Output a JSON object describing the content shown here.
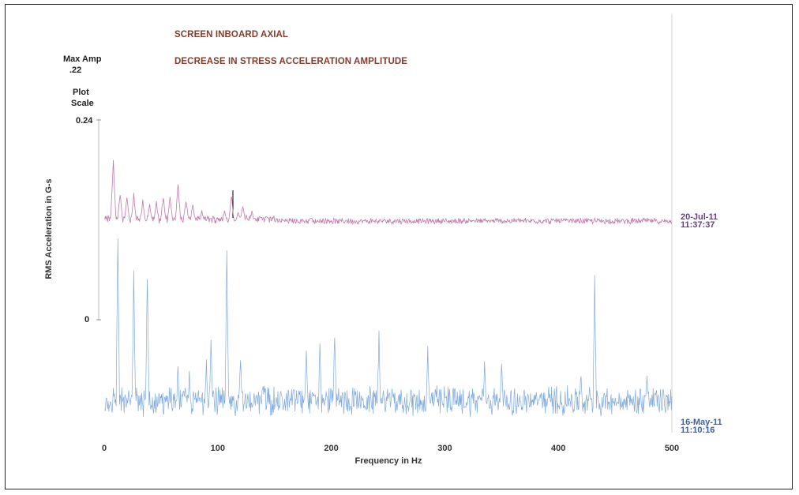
{
  "chart_data": {
    "type": "line",
    "title": "SCREEN INBOARD AXIAL",
    "subtitle": "DECREASE IN STRESS ACCELERATION AMPLITUDE",
    "xlabel": "Frequency in Hz",
    "ylabel": "RMS Acceleration in G-s",
    "xlim": [
      0,
      500
    ],
    "x_ticks": [
      "0",
      "100",
      "200",
      "300",
      "400",
      "500"
    ],
    "y_ticks": [
      "0.24",
      "0"
    ],
    "max_amp_label": "Max Amp",
    "max_amp_value": ".22",
    "plot_scale_label_1": "Plot",
    "plot_scale_label_2": "Scale",
    "series": [
      {
        "date": "20-Jul-11",
        "time": "11:37:37",
        "color": "#c27aae",
        "peaks": [
          {
            "x": 8,
            "y": 0.09
          },
          {
            "x": 14,
            "y": 0.042
          },
          {
            "x": 20,
            "y": 0.036
          },
          {
            "x": 26,
            "y": 0.04
          },
          {
            "x": 34,
            "y": 0.03
          },
          {
            "x": 40,
            "y": 0.025
          },
          {
            "x": 46,
            "y": 0.03
          },
          {
            "x": 52,
            "y": 0.038
          },
          {
            "x": 58,
            "y": 0.036
          },
          {
            "x": 65,
            "y": 0.052
          },
          {
            "x": 72,
            "y": 0.033
          },
          {
            "x": 78,
            "y": 0.026
          },
          {
            "x": 86,
            "y": 0.016
          },
          {
            "x": 106,
            "y": 0.018
          },
          {
            "x": 112,
            "y": 0.038
          },
          {
            "x": 118,
            "y": 0.015
          },
          {
            "x": 122,
            "y": 0.024
          },
          {
            "x": 130,
            "y": 0.016
          },
          {
            "x": 138,
            "y": 0.01
          },
          {
            "x": 182,
            "y": 0.009
          }
        ]
      },
      {
        "date": "16-May-11",
        "time": "11:10:16",
        "color": "#7fa9dc",
        "peaks": [
          {
            "x": 12,
            "y": 0.22
          },
          {
            "x": 26,
            "y": 0.18
          },
          {
            "x": 38,
            "y": 0.175
          },
          {
            "x": 65,
            "y": 0.06
          },
          {
            "x": 75,
            "y": 0.05
          },
          {
            "x": 90,
            "y": 0.068
          },
          {
            "x": 94,
            "y": 0.09
          },
          {
            "x": 108,
            "y": 0.205
          },
          {
            "x": 120,
            "y": 0.07
          },
          {
            "x": 178,
            "y": 0.075
          },
          {
            "x": 190,
            "y": 0.085
          },
          {
            "x": 203,
            "y": 0.1
          },
          {
            "x": 242,
            "y": 0.1
          },
          {
            "x": 285,
            "y": 0.082
          },
          {
            "x": 335,
            "y": 0.06
          },
          {
            "x": 350,
            "y": 0.058
          },
          {
            "x": 420,
            "y": 0.05
          },
          {
            "x": 432,
            "y": 0.17
          },
          {
            "x": 478,
            "y": 0.04
          }
        ]
      }
    ]
  }
}
